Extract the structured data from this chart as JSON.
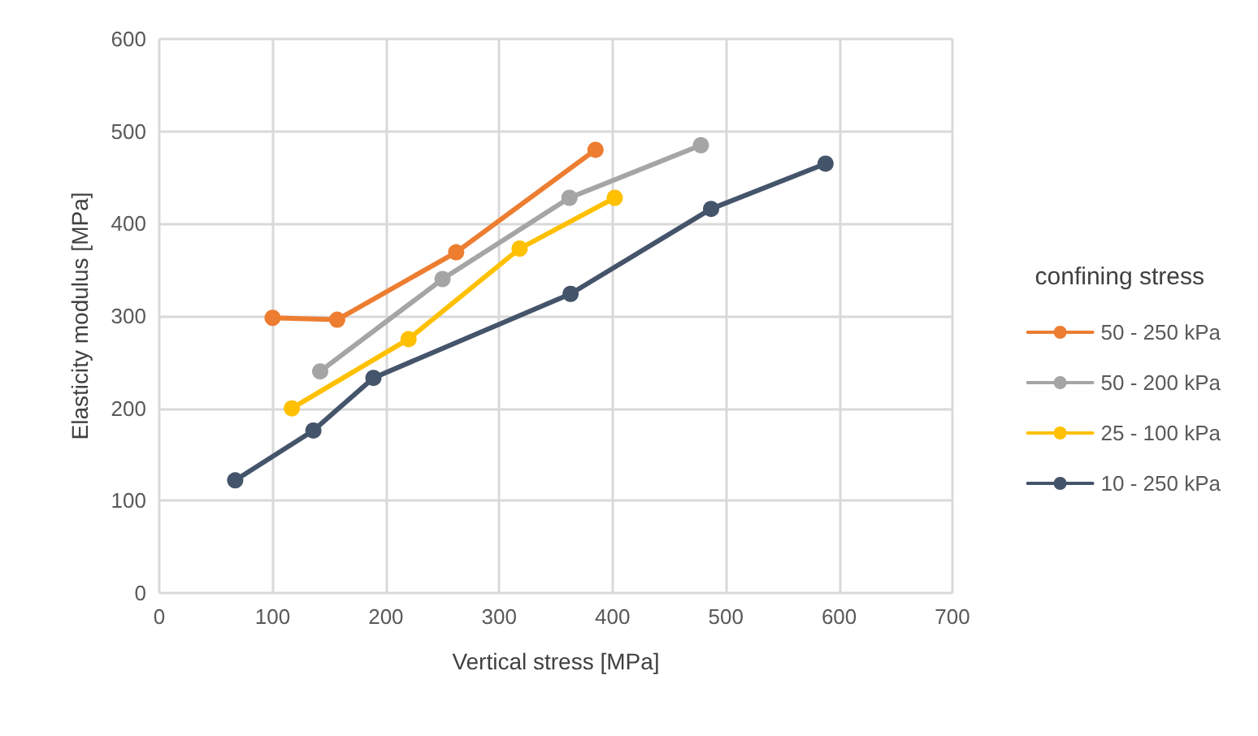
{
  "chart_data": {
    "type": "line",
    "xlabel": "Vertical stress [MPa]",
    "ylabel": "Elasticity modulus [MPa]",
    "legend_title": "confining stress",
    "xlim": [
      0,
      700
    ],
    "xticks": [
      0,
      100,
      200,
      300,
      400,
      500,
      600,
      700
    ],
    "ylim": [
      0,
      600
    ],
    "yticks": [
      0,
      100,
      200,
      300,
      400,
      500,
      600
    ],
    "grid": true,
    "legend": "right",
    "marker": "circle",
    "line_style": "solid",
    "series": [
      {
        "name": "50 - 250 kPa",
        "color": "#ed7d31",
        "x": [
          100,
          157,
          262,
          385
        ],
        "values": [
          298,
          296,
          369,
          480
        ]
      },
      {
        "name": "50 - 200 kPa",
        "color": "#a5a5a5",
        "x": [
          142,
          250,
          362,
          478
        ],
        "values": [
          240,
          340,
          428,
          485
        ]
      },
      {
        "name": "25 - 100 kPa",
        "color": "#ffc000",
        "x": [
          117,
          220,
          318,
          402
        ],
        "values": [
          200,
          275,
          373,
          428
        ]
      },
      {
        "name": "10 - 250 kPa",
        "color": "#44546a",
        "x": [
          67,
          136,
          189,
          363,
          487,
          588
        ],
        "values": [
          122,
          176,
          233,
          324,
          416,
          465
        ]
      }
    ]
  }
}
